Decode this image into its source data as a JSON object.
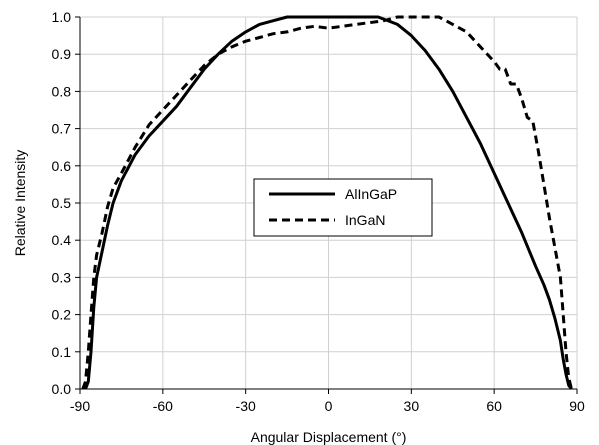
{
  "chart_data": {
    "type": "line",
    "title": "",
    "xlabel": "Angular Displacement (°)",
    "ylabel": "Relative Intensity",
    "xlim": [
      -90,
      90
    ],
    "ylim": [
      0,
      1.0
    ],
    "x_ticks": [
      -90,
      -60,
      -30,
      0,
      30,
      60,
      90
    ],
    "y_ticks": [
      0.0,
      0.1,
      0.2,
      0.3,
      0.4,
      0.5,
      0.6,
      0.7,
      0.8,
      0.9,
      1.0
    ],
    "x_tick_labels": [
      "-90",
      "-60",
      "-30",
      "0",
      "30",
      "60",
      "90"
    ],
    "y_tick_labels": [
      "0.0",
      "0.1",
      "0.2",
      "0.3",
      "0.4",
      "0.5",
      "0.6",
      "0.7",
      "0.8",
      "0.9",
      "1.0"
    ],
    "grid": true,
    "legend_position": "center",
    "series": [
      {
        "name": "AlInGaP",
        "style": "solid",
        "color": "#000000",
        "x": [
          -88,
          -87,
          -86,
          -85,
          -84,
          -82,
          -80,
          -78,
          -75,
          -70,
          -65,
          -60,
          -55,
          -50,
          -45,
          -40,
          -35,
          -30,
          -25,
          -20,
          -15,
          -10,
          0,
          10,
          18,
          25,
          30,
          35,
          40,
          45,
          50,
          55,
          60,
          65,
          70,
          75,
          78,
          80,
          82,
          84,
          85,
          86,
          87,
          88
        ],
        "y": [
          0.0,
          0.02,
          0.1,
          0.22,
          0.3,
          0.37,
          0.44,
          0.5,
          0.56,
          0.63,
          0.68,
          0.72,
          0.76,
          0.81,
          0.86,
          0.9,
          0.935,
          0.96,
          0.98,
          0.99,
          1.0,
          1.0,
          1.0,
          1.0,
          1.0,
          0.98,
          0.95,
          0.91,
          0.86,
          0.8,
          0.73,
          0.66,
          0.58,
          0.5,
          0.42,
          0.33,
          0.28,
          0.24,
          0.19,
          0.13,
          0.08,
          0.04,
          0.01,
          0.0
        ]
      },
      {
        "name": "InGaN",
        "style": "dashed",
        "color": "#000000",
        "x": [
          -89,
          -88,
          -87,
          -86,
          -85,
          -84,
          -82,
          -80,
          -78,
          -75,
          -70,
          -65,
          -60,
          -55,
          -50,
          -45,
          -40,
          -35,
          -30,
          -25,
          -20,
          -15,
          -10,
          -5,
          0,
          5,
          10,
          15,
          20,
          25,
          30,
          35,
          40,
          45,
          50,
          55,
          60,
          62,
          64,
          66,
          68,
          70,
          72,
          74,
          76,
          78,
          80,
          82,
          84,
          85,
          86,
          87,
          88
        ],
        "y": [
          0.0,
          0.02,
          0.1,
          0.2,
          0.3,
          0.36,
          0.42,
          0.49,
          0.54,
          0.58,
          0.65,
          0.71,
          0.75,
          0.79,
          0.83,
          0.87,
          0.9,
          0.92,
          0.935,
          0.945,
          0.955,
          0.96,
          0.97,
          0.975,
          0.97,
          0.975,
          0.98,
          0.985,
          0.99,
          1.0,
          1.0,
          1.0,
          1.0,
          0.98,
          0.96,
          0.92,
          0.88,
          0.86,
          0.86,
          0.82,
          0.82,
          0.78,
          0.73,
          0.72,
          0.64,
          0.55,
          0.46,
          0.38,
          0.3,
          0.2,
          0.1,
          0.03,
          0.0
        ]
      }
    ]
  }
}
